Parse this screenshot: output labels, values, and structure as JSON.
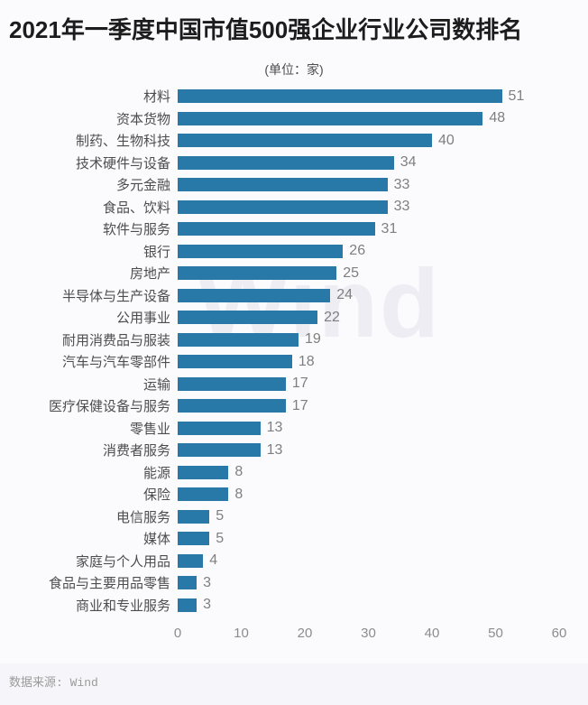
{
  "page": {
    "background_color": "#fbfbfe",
    "footer_background_color": "#f6f6fa"
  },
  "header": {
    "title": "2021年一季度中国市值500强企业行业公司数排名",
    "subtitle": "(单位：家)"
  },
  "watermark": "Wind",
  "footer": {
    "source_label": "数据来源: Wind"
  },
  "chart_data": {
    "type": "bar",
    "orientation": "horizontal",
    "title": "2021年一季度中国市值500强企业行业公司数排名",
    "subtitle": "(单位：家)",
    "unit": "家",
    "categories": [
      "材料",
      "资本货物",
      "制药、生物科技",
      "技术硬件与设备",
      "多元金融",
      "食品、饮料",
      "软件与服务",
      "银行",
      "房地产",
      "半导体与生产设备",
      "公用事业",
      "耐用消费品与服装",
      "汽车与汽车零部件",
      "运输",
      "医疗保健设备与服务",
      "零售业",
      "消费者服务",
      "能源",
      "保险",
      "电信服务",
      "媒体",
      "家庭与个人用品",
      "食品与主要用品零售",
      "商业和专业服务"
    ],
    "values": [
      51,
      48,
      40,
      34,
      33,
      33,
      31,
      26,
      25,
      24,
      22,
      19,
      18,
      17,
      17,
      13,
      13,
      8,
      8,
      5,
      5,
      4,
      3,
      3
    ],
    "xlim": [
      0,
      60
    ],
    "x_ticks": [
      0,
      10,
      20,
      30,
      40,
      50,
      60
    ],
    "bar_color": "#2878a8",
    "value_label_color": "#7f7f7f",
    "category_label_color": "#4d4d4d",
    "grid": false,
    "legend": false,
    "data_source": "Wind"
  }
}
